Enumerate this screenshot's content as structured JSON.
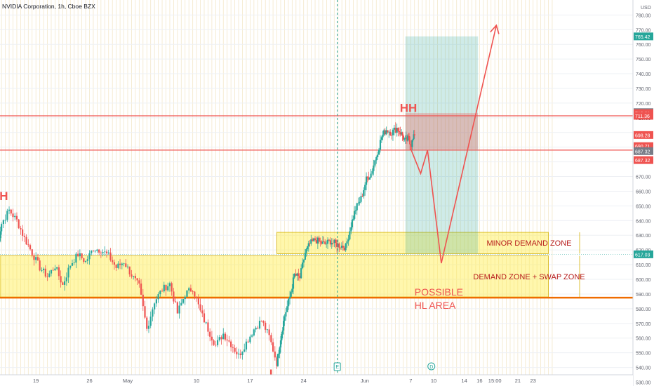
{
  "header": {
    "symbol_line": "NVIDIA Corporation, 1h, Cboe BZX"
  },
  "chart_data": {
    "type": "candlestick",
    "currency": "USD",
    "y_ticks": [
      530,
      540,
      550,
      560,
      570,
      580,
      590,
      600,
      610,
      620,
      630,
      640,
      650,
      660,
      670,
      680,
      690,
      700,
      710,
      720,
      730,
      740,
      750,
      760,
      770,
      780
    ],
    "x_ticks": [
      {
        "label": "19",
        "day": -12
      },
      {
        "label": "26",
        "day": -5
      },
      {
        "label": "May",
        "day": 0
      },
      {
        "label": "10",
        "day": 9
      },
      {
        "label": "17",
        "day": 16
      },
      {
        "label": "24",
        "day": 23
      },
      {
        "label": "Jun",
        "day": 31
      },
      {
        "label": "7",
        "day": 37
      },
      {
        "label": "10",
        "day": 40
      },
      {
        "label": "14",
        "day": 44
      },
      {
        "label": "16",
        "day": 46
      },
      {
        "label": "15:00",
        "day": 48
      },
      {
        "label": "21",
        "day": 51
      },
      {
        "label": "23",
        "day": 53
      }
    ],
    "price_tags": [
      {
        "label": "765.42",
        "value": 765.42,
        "color": "#26a69a"
      },
      {
        "label": "713.83",
        "value": 713.83,
        "color": "#787b86"
      },
      {
        "label": "713.21",
        "value": 713.21,
        "color": "#ef5350"
      },
      {
        "label": "711.36",
        "value": 711.36,
        "color": "#ef5350"
      },
      {
        "label": "698.28",
        "value": 698.28,
        "color": "#ef5350"
      },
      {
        "label": "690.71",
        "value": 690.71,
        "color": "#ef5350"
      },
      {
        "label": "687.32",
        "value": 687.32,
        "color": "#787b86"
      },
      {
        "label": "687.32",
        "value": 681.2,
        "color": "#ef5350"
      },
      {
        "label": "617.03",
        "value": 617.03,
        "color": "#26a69a"
      }
    ],
    "horizontal_lines": [
      {
        "value": 711.36,
        "color": "#ef5350"
      },
      {
        "value": 688.0,
        "color": "#ef5350"
      },
      {
        "value": 587.5,
        "color": "#ef6c00"
      }
    ],
    "zones": [
      {
        "label": "DEMAND ZONE + SWAP ZONE",
        "top": 616,
        "bottom": 588,
        "day_start": -17,
        "day_end": 55
      },
      {
        "label": "MINOR DEMAND ZONE",
        "top": 632,
        "bottom": 617.5,
        "day_start": 19.5,
        "day_end": 55
      }
    ],
    "position": {
      "entry": 698.28,
      "stop": 713.21,
      "target": 765.42,
      "day_start": 36.3,
      "day_end": 45.8
    },
    "annotations": [
      {
        "text": "H",
        "day": -16.2,
        "value": 654,
        "color": "#ef5350"
      },
      {
        "text": "HH",
        "day": 36.7,
        "value": 714,
        "color": "#ef5350"
      },
      {
        "text": "L",
        "day": 19,
        "value": 533,
        "color": "#ef5350"
      },
      {
        "text": "POSSIBLE",
        "day": 37.5,
        "value": 589,
        "color": "#ef5350"
      },
      {
        "text": "HL AREA",
        "day": 37.5,
        "value": 580,
        "color": "#ef5350"
      }
    ],
    "projection": [
      {
        "day": 37.0,
        "value": 689
      },
      {
        "day": 38.3,
        "value": 672
      },
      {
        "day": 39.2,
        "value": 688
      },
      {
        "day": 41.0,
        "value": 611
      },
      {
        "day": 48.2,
        "value": 773
      }
    ],
    "events": [
      {
        "symbol": "E",
        "day": 27.4
      },
      {
        "symbol": "D",
        "day": 39.7
      }
    ],
    "series_close": [
      {
        "day": -17.0,
        "value": 622
      },
      {
        "day": -16.5,
        "value": 638
      },
      {
        "day": -15.5,
        "value": 647
      },
      {
        "day": -14.5,
        "value": 640
      },
      {
        "day": -13.5,
        "value": 628
      },
      {
        "day": -12.5,
        "value": 618
      },
      {
        "day": -11.5,
        "value": 608
      },
      {
        "day": -10.5,
        "value": 602
      },
      {
        "day": -9.5,
        "value": 609
      },
      {
        "day": -8.5,
        "value": 596
      },
      {
        "day": -7.5,
        "value": 610
      },
      {
        "day": -6.5,
        "value": 617
      },
      {
        "day": -5.5,
        "value": 612
      },
      {
        "day": -4.5,
        "value": 621
      },
      {
        "day": -3.5,
        "value": 620
      },
      {
        "day": -2.5,
        "value": 616
      },
      {
        "day": -1.5,
        "value": 608
      },
      {
        "day": -0.5,
        "value": 612
      },
      {
        "day": 0.5,
        "value": 603
      },
      {
        "day": 1.5,
        "value": 595
      },
      {
        "day": 2.5,
        "value": 566
      },
      {
        "day": 3.5,
        "value": 585
      },
      {
        "day": 4.5,
        "value": 593
      },
      {
        "day": 5.5,
        "value": 597
      },
      {
        "day": 6.5,
        "value": 577
      },
      {
        "day": 7.5,
        "value": 590
      },
      {
        "day": 8.5,
        "value": 594
      },
      {
        "day": 9.5,
        "value": 578
      },
      {
        "day": 10.5,
        "value": 566
      },
      {
        "day": 11.5,
        "value": 555
      },
      {
        "day": 12.5,
        "value": 563
      },
      {
        "day": 13.5,
        "value": 556
      },
      {
        "day": 14.5,
        "value": 548
      },
      {
        "day": 15.5,
        "value": 557
      },
      {
        "day": 16.5,
        "value": 566
      },
      {
        "day": 17.5,
        "value": 572
      },
      {
        "day": 18.5,
        "value": 561
      },
      {
        "day": 19.5,
        "value": 543
      },
      {
        "day": 20.0,
        "value": 560
      },
      {
        "day": 20.5,
        "value": 575
      },
      {
        "day": 21.2,
        "value": 588
      },
      {
        "day": 21.8,
        "value": 603
      },
      {
        "day": 22.5,
        "value": 601
      },
      {
        "day": 23.2,
        "value": 618
      },
      {
        "day": 23.8,
        "value": 624
      },
      {
        "day": 24.5,
        "value": 627
      },
      {
        "day": 25.2,
        "value": 625
      },
      {
        "day": 25.8,
        "value": 624
      },
      {
        "day": 26.5,
        "value": 626
      },
      {
        "day": 27.2,
        "value": 624
      },
      {
        "day": 27.8,
        "value": 623
      },
      {
        "day": 28.5,
        "value": 622
      },
      {
        "day": 29.2,
        "value": 637
      },
      {
        "day": 29.8,
        "value": 648
      },
      {
        "day": 30.5,
        "value": 655
      },
      {
        "day": 31.2,
        "value": 668
      },
      {
        "day": 31.8,
        "value": 672
      },
      {
        "day": 32.5,
        "value": 684
      },
      {
        "day": 33.2,
        "value": 697
      },
      {
        "day": 33.8,
        "value": 702
      },
      {
        "day": 34.5,
        "value": 700
      },
      {
        "day": 35.2,
        "value": 703
      },
      {
        "day": 35.8,
        "value": 699
      },
      {
        "day": 36.3,
        "value": 694
      },
      {
        "day": 36.7,
        "value": 696
      },
      {
        "day": 37.1,
        "value": 692
      },
      {
        "day": 37.5,
        "value": 698
      }
    ]
  }
}
